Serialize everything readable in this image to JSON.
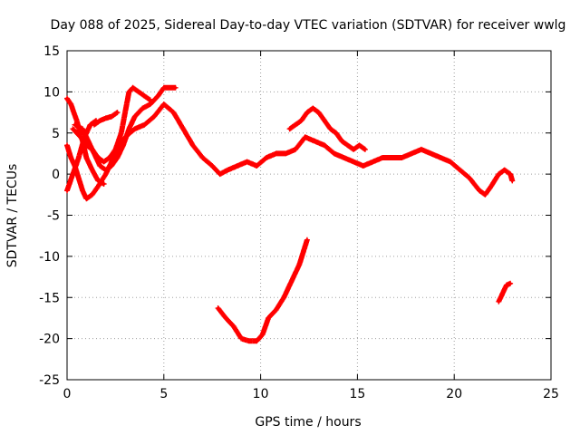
{
  "chart_data": {
    "type": "scatter",
    "title": "Day 088 of 2025, Sidereal Day-to-day VTEC variation (SDTVAR) for receiver wwlg",
    "xlabel": "GPS time / hours",
    "ylabel": "SDTVAR / TECUs",
    "xlim": [
      0,
      25
    ],
    "ylim": [
      -25,
      15
    ],
    "xticks": [
      0,
      5,
      10,
      15,
      20,
      25
    ],
    "yticks": [
      -25,
      -20,
      -15,
      -10,
      -5,
      0,
      5,
      10,
      15
    ],
    "grid": true,
    "marker": "+",
    "color": "#ff0000",
    "series": [
      {
        "name": "arc-1",
        "points": [
          [
            0.0,
            9.2
          ],
          [
            0.2,
            8.5
          ],
          [
            0.5,
            6.5
          ],
          [
            0.8,
            4.0
          ],
          [
            1.0,
            2.0
          ],
          [
            1.3,
            0.5
          ],
          [
            1.6,
            -0.8
          ],
          [
            1.9,
            -1.2
          ]
        ]
      },
      {
        "name": "arc-2",
        "points": [
          [
            0.0,
            3.5
          ],
          [
            0.2,
            2.0
          ],
          [
            0.4,
            1.0
          ],
          [
            0.6,
            -0.5
          ],
          [
            0.8,
            -2.0
          ],
          [
            1.0,
            -3.0
          ],
          [
            1.3,
            -2.5
          ],
          [
            1.6,
            -1.5
          ],
          [
            2.0,
            0.0
          ],
          [
            2.5,
            2.5
          ],
          [
            3.0,
            4.5
          ],
          [
            3.5,
            5.5
          ],
          [
            4.0,
            6.0
          ],
          [
            4.5,
            7.0
          ],
          [
            5.0,
            8.5
          ],
          [
            5.5,
            7.5
          ],
          [
            6.0,
            5.5
          ],
          [
            6.5,
            3.5
          ],
          [
            7.0,
            2.0
          ],
          [
            7.5,
            1.0
          ],
          [
            7.9,
            0.0
          ],
          [
            8.3,
            0.5
          ],
          [
            8.8,
            1.0
          ],
          [
            9.3,
            1.5
          ],
          [
            9.8,
            1.0
          ],
          [
            10.3,
            2.0
          ],
          [
            10.8,
            2.5
          ],
          [
            11.3,
            2.5
          ],
          [
            11.8,
            3.0
          ],
          [
            12.3,
            4.5
          ],
          [
            12.8,
            4.0
          ],
          [
            13.3,
            3.5
          ],
          [
            13.8,
            2.5
          ],
          [
            14.3,
            2.0
          ],
          [
            14.8,
            1.5
          ],
          [
            15.3,
            1.0
          ],
          [
            15.8,
            1.5
          ],
          [
            16.3,
            2.0
          ],
          [
            16.8,
            2.0
          ],
          [
            17.3,
            2.0
          ],
          [
            17.8,
            2.5
          ],
          [
            18.3,
            3.0
          ],
          [
            18.8,
            2.5
          ],
          [
            19.3,
            2.0
          ],
          [
            19.8,
            1.5
          ],
          [
            20.3,
            0.5
          ],
          [
            20.8,
            -0.5
          ],
          [
            21.3,
            -2.0
          ],
          [
            21.6,
            -2.5
          ],
          [
            21.9,
            -1.5
          ],
          [
            22.3,
            0.0
          ],
          [
            22.6,
            0.5
          ],
          [
            22.9,
            0.0
          ],
          [
            23.0,
            -0.8
          ]
        ]
      },
      {
        "name": "arc-3",
        "points": [
          [
            0.0,
            -2.0
          ],
          [
            0.3,
            0.0
          ],
          [
            0.6,
            2.0
          ],
          [
            0.9,
            4.5
          ],
          [
            1.2,
            6.0
          ],
          [
            1.5,
            6.5
          ]
        ]
      },
      {
        "name": "arc-4",
        "points": [
          [
            0.3,
            5.5
          ],
          [
            0.7,
            4.5
          ],
          [
            1.0,
            3.5
          ],
          [
            1.3,
            3.0
          ],
          [
            1.6,
            2.0
          ],
          [
            1.9,
            1.5
          ],
          [
            2.2,
            2.0
          ],
          [
            2.5,
            3.0
          ],
          [
            2.8,
            5.0
          ],
          [
            3.0,
            7.5
          ],
          [
            3.2,
            10.0
          ],
          [
            3.4,
            10.5
          ],
          [
            3.7,
            10.0
          ],
          [
            4.0,
            9.5
          ],
          [
            4.3,
            9.0
          ]
        ]
      },
      {
        "name": "arc-5",
        "points": [
          [
            0.4,
            6.0
          ],
          [
            0.8,
            5.5
          ],
          [
            1.1,
            4.0
          ],
          [
            1.4,
            2.5
          ],
          [
            1.7,
            1.0
          ],
          [
            2.0,
            0.5
          ],
          [
            2.3,
            1.0
          ],
          [
            2.6,
            2.0
          ],
          [
            2.9,
            3.5
          ],
          [
            3.2,
            5.5
          ],
          [
            3.5,
            7.0
          ],
          [
            3.9,
            8.0
          ],
          [
            4.3,
            8.5
          ],
          [
            4.7,
            9.5
          ],
          [
            5.0,
            10.5
          ],
          [
            5.3,
            10.5
          ],
          [
            5.6,
            10.5
          ]
        ]
      },
      {
        "name": "arc-6",
        "points": [
          [
            1.4,
            6.0
          ],
          [
            1.7,
            6.5
          ],
          [
            2.0,
            6.8
          ],
          [
            2.3,
            7.0
          ],
          [
            2.6,
            7.5
          ]
        ]
      },
      {
        "name": "arc-7",
        "points": [
          [
            7.8,
            -16.3
          ],
          [
            8.2,
            -17.5
          ],
          [
            8.6,
            -18.5
          ],
          [
            9.0,
            -20.0
          ],
          [
            9.4,
            -20.3
          ],
          [
            9.8,
            -20.3
          ],
          [
            10.1,
            -19.5
          ],
          [
            10.4,
            -17.5
          ],
          [
            10.8,
            -16.5
          ],
          [
            11.2,
            -15.0
          ],
          [
            11.6,
            -13.0
          ],
          [
            12.0,
            -11.0
          ],
          [
            12.4,
            -8.0
          ]
        ]
      },
      {
        "name": "arc-8",
        "points": [
          [
            11.5,
            5.5
          ],
          [
            11.8,
            6.0
          ],
          [
            12.1,
            6.5
          ],
          [
            12.4,
            7.5
          ],
          [
            12.7,
            8.0
          ],
          [
            13.0,
            7.5
          ],
          [
            13.3,
            6.5
          ],
          [
            13.6,
            5.5
          ],
          [
            13.9,
            5.0
          ],
          [
            14.2,
            4.0
          ],
          [
            14.5,
            3.5
          ],
          [
            14.8,
            3.0
          ],
          [
            15.1,
            3.5
          ],
          [
            15.4,
            3.0
          ]
        ]
      },
      {
        "name": "arc-9",
        "points": [
          [
            22.3,
            -15.5
          ],
          [
            22.5,
            -14.5
          ],
          [
            22.7,
            -13.5
          ],
          [
            22.9,
            -13.3
          ]
        ]
      }
    ]
  }
}
